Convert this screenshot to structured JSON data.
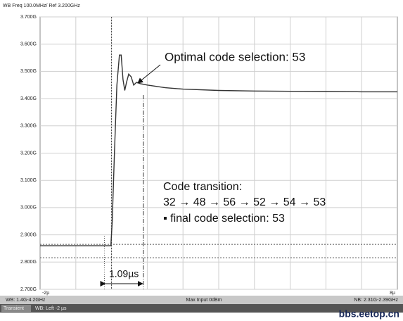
{
  "chart_data": {
    "type": "line",
    "header": "WB Freq 100.0MHz/ Ref 3.200GHz",
    "ylim": [
      2.7,
      3.7
    ],
    "yticks": [
      {
        "value": 3.7,
        "label": "3.700G"
      },
      {
        "value": 3.6,
        "label": "3.600G"
      },
      {
        "value": 3.5,
        "label": "3.500G"
      },
      {
        "value": 3.4,
        "label": "3.400G"
      },
      {
        "value": 3.3,
        "label": "3.300G"
      },
      {
        "value": 3.2,
        "label": "3.200G"
      },
      {
        "value": 3.1,
        "label": "3.100G"
      },
      {
        "value": 3.0,
        "label": "3.000G"
      },
      {
        "value": 2.9,
        "label": "2.900G"
      },
      {
        "value": 2.8,
        "label": "2.800G"
      },
      {
        "value": 2.7,
        "label": "2.700G"
      }
    ],
    "xlim": [
      -2,
      8
    ],
    "xticks": [
      {
        "value": -2,
        "label": "-2µ"
      },
      {
        "value": 8,
        "label": "8µ"
      }
    ],
    "xgrid_step": 1,
    "grid": true,
    "series": [
      {
        "color": "#333333",
        "x": [
          -2,
          -0.02,
          0.02,
          0.08,
          0.15,
          0.22,
          0.27,
          0.32,
          0.37,
          0.42,
          0.48,
          0.55,
          0.62,
          0.7,
          0.8,
          1.0,
          1.5,
          2.0,
          3.0,
          4.0,
          5.0,
          6.0,
          7.0,
          8.0
        ],
        "values": [
          2.86,
          2.86,
          2.95,
          3.2,
          3.45,
          3.56,
          3.56,
          3.47,
          3.43,
          3.46,
          3.49,
          3.48,
          3.45,
          3.46,
          3.455,
          3.45,
          3.44,
          3.435,
          3.43,
          3.428,
          3.427,
          3.426,
          3.425,
          3.425
        ]
      }
    ],
    "marker_x": [
      -0.2,
      0.89
    ],
    "marker_y": [
      2.865,
      2.816
    ],
    "annotations": [
      "Optimal code selection: 53",
      "Code transition:",
      "32 → 48 → 56 → 52 → 54 → 53",
      "▪ final  code selection: 53",
      "1.09µs"
    ],
    "status_bar": [
      "WB: 1.4G-4.2GHz",
      "Max Input 0dBm",
      "NB: 2.31G-2.39GHz"
    ],
    "mode_bar": [
      "Transient",
      "WB: Left -2 µs"
    ],
    "watermark": "bbs.eetop.cn"
  }
}
